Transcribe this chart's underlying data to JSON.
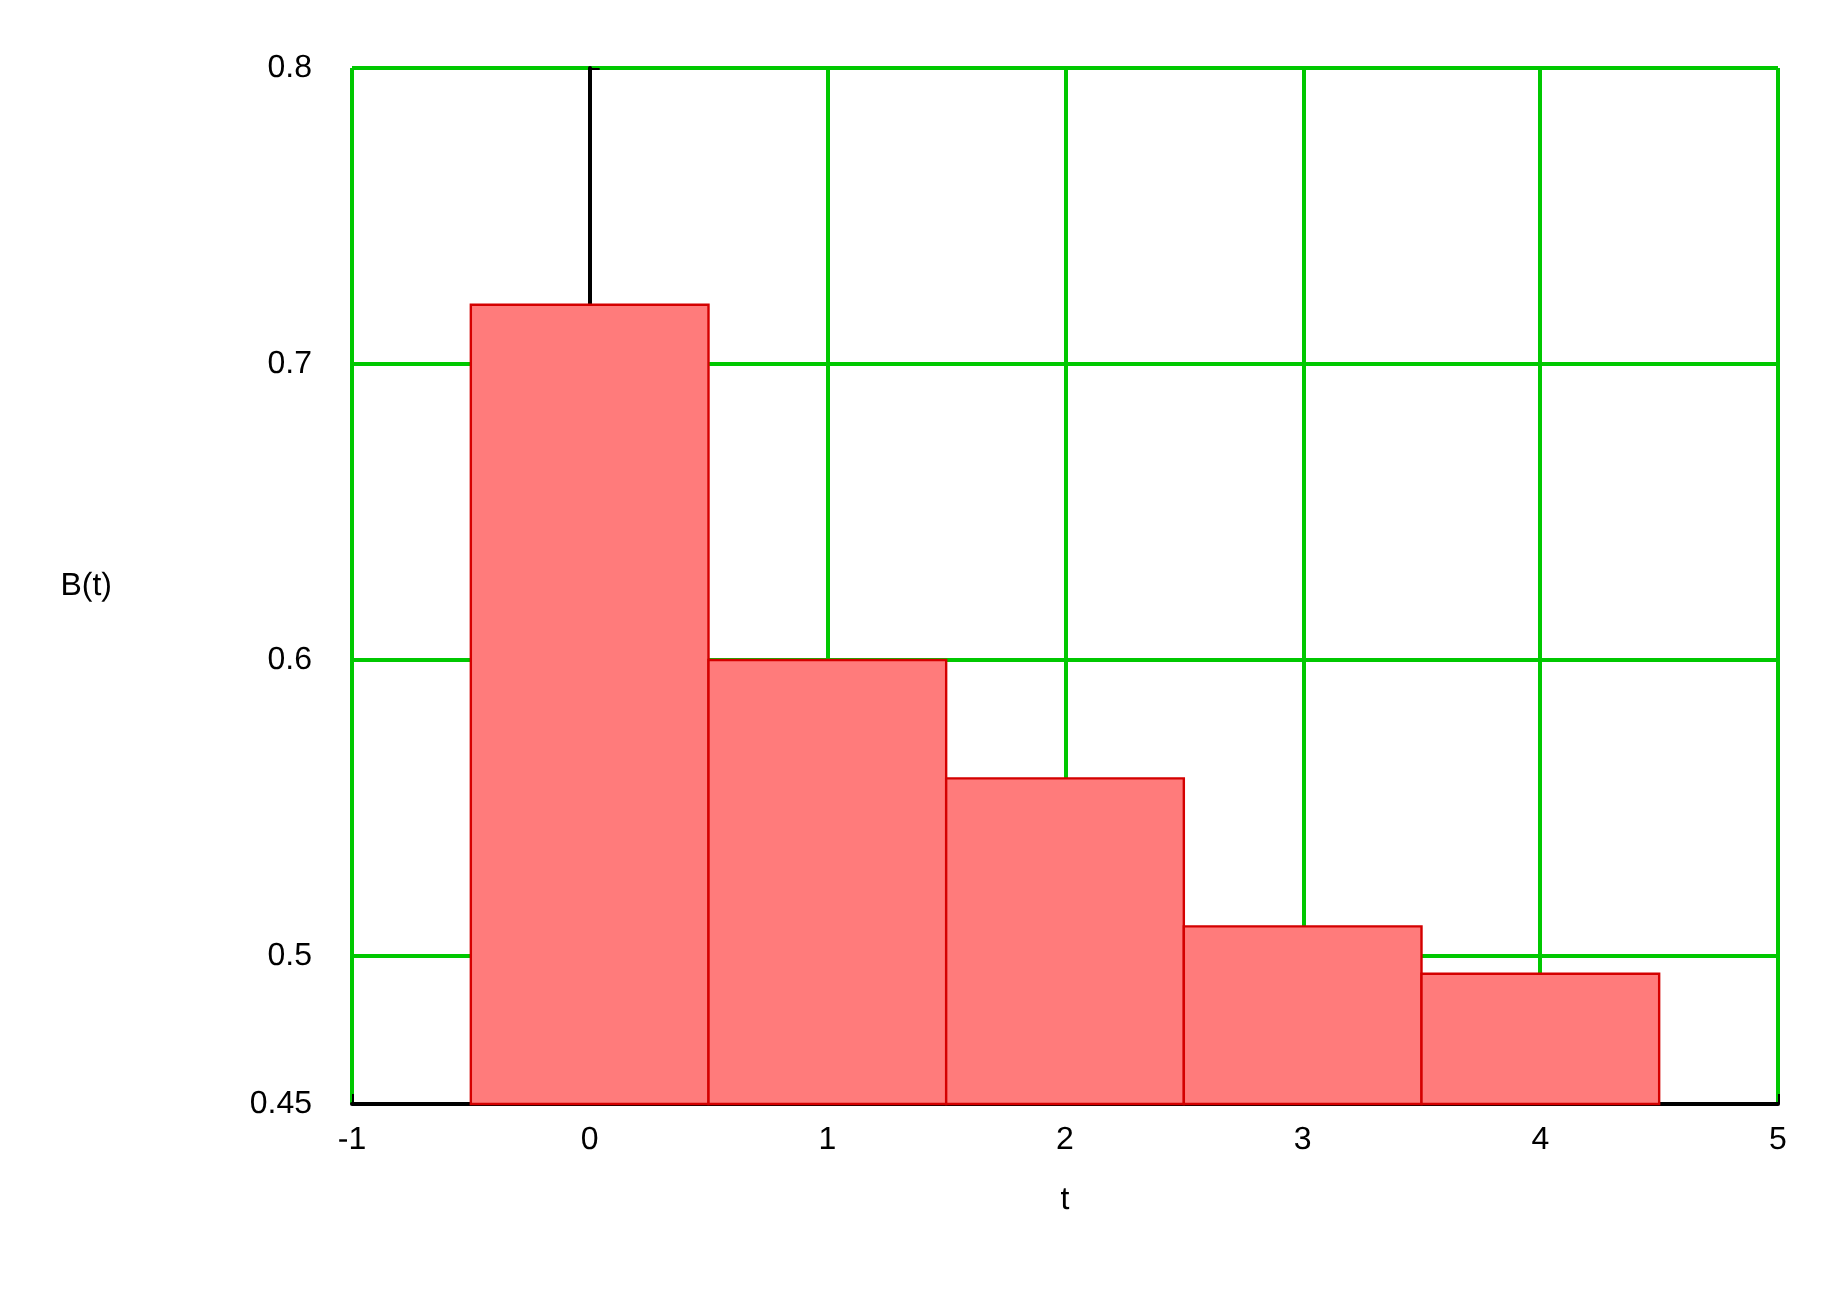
{
  "chart_data": {
    "type": "histogram",
    "xlabel": "t",
    "ylabel": "B(t)",
    "bins": [
      -0.5,
      0.5,
      1.5,
      2.5,
      3.5,
      4.5
    ],
    "values": [
      0.72,
      0.6,
      0.56,
      0.51,
      0.494
    ],
    "color": "#ff7b7b",
    "xlim": [
      -1,
      5
    ],
    "xticks": [
      -1,
      0,
      1,
      2,
      3,
      4,
      5
    ],
    "ylim": [
      0.45,
      0.8
    ],
    "yticks": [
      0.45,
      0.5,
      0.6,
      0.7,
      0.8
    ],
    "grid": true
  }
}
